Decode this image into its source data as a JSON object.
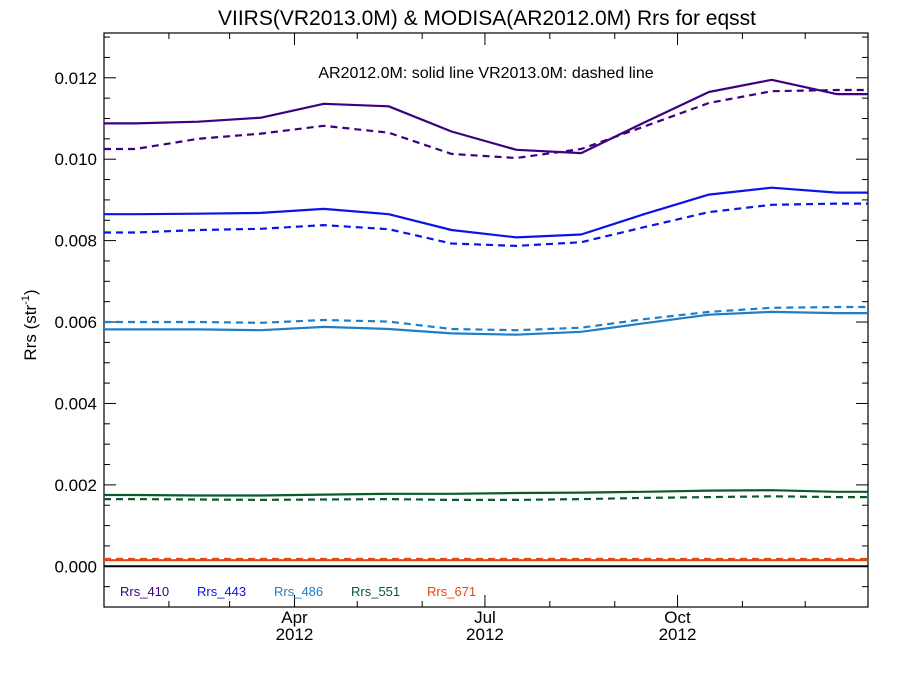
{
  "chart_data": {
    "type": "line",
    "title": "VIIRS(VR2013.0M) & MODISA(AR2012.0M)  Rrs for eqsst",
    "ylabel": "Rrs (str",
    "ylabel_sup": "-1",
    "ylabel_close": ")",
    "annotation": "AR2012.0M: solid line   VR2013.0M: dashed line",
    "x_type": "date",
    "xlim": [
      "2012-01-01",
      "2012-12-31"
    ],
    "ylim": [
      -0.001,
      0.0131
    ],
    "y_ticks": [
      0.0,
      0.002,
      0.004,
      0.006,
      0.008,
      0.01,
      0.012
    ],
    "y_tick_labels": [
      "0.000",
      "0.002",
      "0.004",
      "0.006",
      "0.008",
      "0.010",
      "0.012"
    ],
    "x_ticks": [
      {
        "date": "2012-04-01",
        "label": "Apr",
        "year": "2012"
      },
      {
        "date": "2012-07-01",
        "label": "Jul",
        "year": "2012"
      },
      {
        "date": "2012-10-01",
        "label": "Oct",
        "year": "2012"
      }
    ],
    "zero_line": true,
    "grid": false,
    "legend_position": "bottom-left",
    "x": [
      "2012-01-16",
      "2012-02-15",
      "2012-03-16",
      "2012-04-15",
      "2012-05-16",
      "2012-06-15",
      "2012-07-16",
      "2012-08-16",
      "2012-09-15",
      "2012-10-16",
      "2012-11-15",
      "2012-12-16"
    ],
    "series": [
      {
        "name": "Rrs_410",
        "color": "#3d0082",
        "style": "solid",
        "values": [
          0.01088,
          0.01092,
          0.01102,
          0.01136,
          0.0113,
          0.01068,
          0.01023,
          0.01015,
          0.0109,
          0.01165,
          0.01195,
          0.0116
        ]
      },
      {
        "name": "Rrs_410",
        "color": "#3d0082",
        "style": "dashed",
        "values": [
          0.01025,
          0.0105,
          0.01063,
          0.01082,
          0.01065,
          0.01013,
          0.01003,
          0.01025,
          0.0108,
          0.01138,
          0.01167,
          0.0117
        ]
      },
      {
        "name": "Rrs_443",
        "color": "#0a14e8",
        "style": "solid",
        "values": [
          0.00865,
          0.00866,
          0.00868,
          0.00878,
          0.00865,
          0.00826,
          0.00808,
          0.00815,
          0.00865,
          0.00913,
          0.0093,
          0.00918
        ]
      },
      {
        "name": "Rrs_443",
        "color": "#0a14e8",
        "style": "dashed",
        "values": [
          0.0082,
          0.00826,
          0.00829,
          0.00838,
          0.00828,
          0.00793,
          0.00787,
          0.00796,
          0.00833,
          0.0087,
          0.00888,
          0.00891
        ]
      },
      {
        "name": "Rrs_486",
        "color": "#1f7ec6",
        "style": "solid",
        "values": [
          0.00582,
          0.00582,
          0.0058,
          0.00588,
          0.00583,
          0.00572,
          0.00569,
          0.00576,
          0.00597,
          0.00618,
          0.00625,
          0.00622
        ]
      },
      {
        "name": "Rrs_486",
        "color": "#1f7ec6",
        "style": "dashed",
        "values": [
          0.006,
          0.006,
          0.00598,
          0.00605,
          0.00601,
          0.00583,
          0.0058,
          0.00586,
          0.00607,
          0.00625,
          0.00635,
          0.00637
        ]
      },
      {
        "name": "Rrs_551",
        "color": "#0a5a2c",
        "style": "solid",
        "values": [
          0.00175,
          0.00174,
          0.00174,
          0.00176,
          0.00178,
          0.00178,
          0.0018,
          0.00181,
          0.00183,
          0.00186,
          0.00187,
          0.00183
        ]
      },
      {
        "name": "Rrs_551",
        "color": "#0a5a2c",
        "style": "dashed",
        "values": [
          0.00165,
          0.00164,
          0.00163,
          0.00164,
          0.00165,
          0.00163,
          0.00163,
          0.00165,
          0.00168,
          0.0017,
          0.00172,
          0.0017
        ]
      },
      {
        "name": "Rrs_671",
        "color": "#e04a10",
        "style": "solid",
        "values": [
          0.00015,
          0.00015,
          0.00015,
          0.00015,
          0.00015,
          0.00015,
          0.00015,
          0.00015,
          0.00015,
          0.00015,
          0.00015,
          0.00015
        ]
      },
      {
        "name": "Rrs_671",
        "color": "#e04a10",
        "style": "dashed",
        "values": [
          0.00018,
          0.00018,
          0.00018,
          0.00018,
          0.00018,
          0.00018,
          0.00018,
          0.00018,
          0.00018,
          0.00018,
          0.00018,
          0.00018
        ]
      }
    ],
    "legend": [
      {
        "label": "Rrs_410",
        "color": "#3d0082"
      },
      {
        "label": "Rrs_443",
        "color": "#0a14e8"
      },
      {
        "label": "Rrs_486",
        "color": "#1f7ec6"
      },
      {
        "label": "Rrs_551",
        "color": "#0a5a2c"
      },
      {
        "label": "Rrs_671",
        "color": "#e04a10"
      }
    ]
  }
}
